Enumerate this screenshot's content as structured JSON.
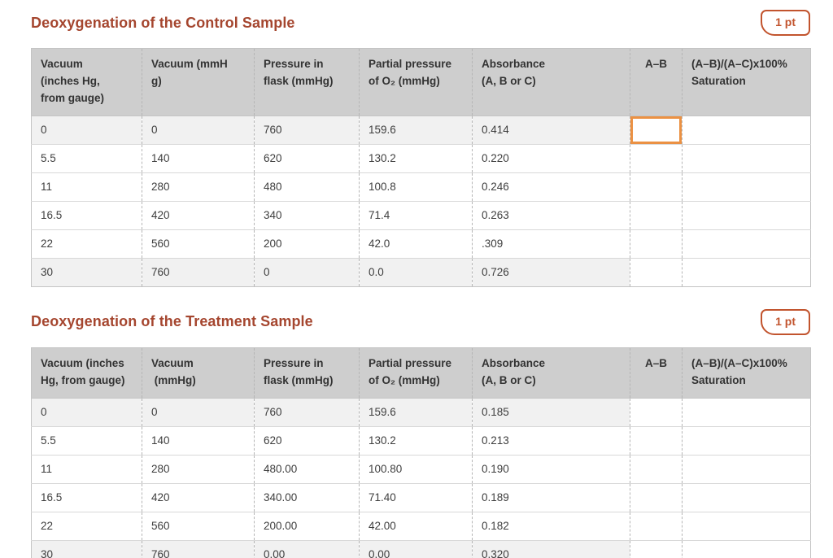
{
  "colors": {
    "title_text": "#a5462f",
    "badge_accent": "#c2542e",
    "focused_cell_border": "#eb9143",
    "header_background": "#cecece",
    "reference_row_background": "#f1f1f1"
  },
  "ui_state": {
    "focused_cell": {
      "table": 0,
      "row": 0,
      "column": "ab",
      "value": ""
    }
  },
  "tables": [
    {
      "title": "Deoxygenation of the Control Sample",
      "points": "1 pt",
      "headers": [
        "Vacuum\n(inches Hg,\nfrom gauge)",
        "Vacuum (mmH\ng)",
        "Pressure in\nflask (mmHg)",
        "Partial pressure\nof O₂ (mmHg)",
        "Absorbance\n(A, B or C)",
        "A–B",
        "(A–B)/(A–C)x100%\nSaturation"
      ],
      "rows": [
        {
          "values": [
            "0",
            "0",
            "760",
            "159.6",
            "0.414"
          ],
          "ab": "",
          "saturation": ""
        },
        {
          "values": [
            "5.5",
            "140",
            "620",
            "130.2",
            "0.220"
          ],
          "ab": "",
          "saturation": ""
        },
        {
          "values": [
            "11",
            "280",
            "480",
            "100.8",
            "0.246"
          ],
          "ab": "",
          "saturation": ""
        },
        {
          "values": [
            "16.5",
            "420",
            "340",
            "71.4",
            "0.263"
          ],
          "ab": "",
          "saturation": ""
        },
        {
          "values": [
            "22",
            "560",
            "200",
            "42.0",
            ".309"
          ],
          "ab": "",
          "saturation": ""
        },
        {
          "values": [
            "30",
            "760",
            "0",
            "0.0",
            "0.726"
          ],
          "ab": "",
          "saturation": ""
        }
      ]
    },
    {
      "title": "Deoxygenation of the Treatment Sample",
      "points": "1 pt",
      "headers": [
        "Vacuum (inches\nHg, from gauge)",
        "Vacuum\n (mmHg)",
        "Pressure in\nflask (mmHg)",
        "Partial pressure\nof O₂ (mmHg)",
        "Absorbance\n(A, B or C)",
        "A–B",
        "(A–B)/(A–C)x100%\nSaturation"
      ],
      "rows": [
        {
          "values": [
            "0",
            "0",
            "760",
            "159.6",
            "0.185"
          ],
          "ab": "",
          "saturation": ""
        },
        {
          "values": [
            "5.5",
            "140",
            "620",
            "130.2",
            "0.213"
          ],
          "ab": "",
          "saturation": ""
        },
        {
          "values": [
            "11",
            "280",
            "480.00",
            "100.80",
            "0.190"
          ],
          "ab": "",
          "saturation": ""
        },
        {
          "values": [
            "16.5",
            "420",
            "340.00",
            "71.40",
            "0.189"
          ],
          "ab": "",
          "saturation": ""
        },
        {
          "values": [
            "22",
            "560",
            "200.00",
            "42.00",
            "0.182"
          ],
          "ab": "",
          "saturation": ""
        },
        {
          "values": [
            "30",
            "760",
            "0.00",
            "0.00",
            "0.320"
          ],
          "ab": "",
          "saturation": ""
        }
      ]
    }
  ]
}
